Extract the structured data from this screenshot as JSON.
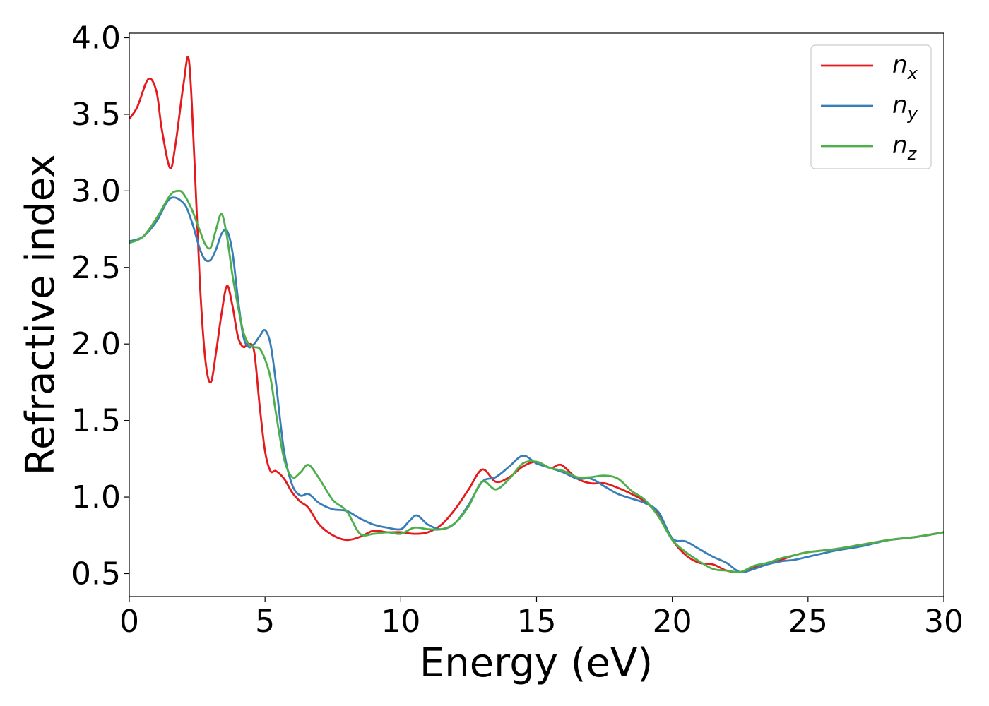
{
  "chart_data": {
    "type": "line",
    "title": "",
    "xlabel": "Energy (eV)",
    "ylabel": "Refractive index",
    "xlim": [
      0,
      30
    ],
    "ylim": [
      0.35,
      4.03
    ],
    "xticks": [
      0,
      5,
      10,
      15,
      20,
      25,
      30
    ],
    "xtick_labels": [
      "0",
      "5",
      "10",
      "15",
      "20",
      "25",
      "30"
    ],
    "yticks": [
      0.5,
      1.0,
      1.5,
      2.0,
      2.5,
      3.0,
      3.5,
      4.0
    ],
    "ytick_labels": [
      "0.5",
      "1.0",
      "1.5",
      "2.0",
      "2.5",
      "3.0",
      "3.5",
      "4.0"
    ],
    "grid": false,
    "legend": "top-right",
    "series": [
      {
        "name": "n",
        "subscript": "x",
        "color": "#e41a1c",
        "x": [
          0,
          0.3,
          0.7,
          1.0,
          1.2,
          1.5,
          1.7,
          2.0,
          2.2,
          2.4,
          2.6,
          2.8,
          3.0,
          3.2,
          3.4,
          3.6,
          3.8,
          4.0,
          4.2,
          4.4,
          4.6,
          4.8,
          5.0,
          5.2,
          5.4,
          5.7,
          6.0,
          6.3,
          6.6,
          7.0,
          7.5,
          8.0,
          8.5,
          9.0,
          9.5,
          10.0,
          10.5,
          11.0,
          11.5,
          12.0,
          12.5,
          13.0,
          13.5,
          14.0,
          14.5,
          15.0,
          15.5,
          15.8,
          16.0,
          16.5,
          17.0,
          17.5,
          18.0,
          18.5,
          19.0,
          19.5,
          20.0,
          20.5,
          21.0,
          21.5,
          22.0,
          22.5,
          23.0,
          23.5,
          24.0,
          24.5,
          25.0,
          26.0,
          27.0,
          28.0,
          29.0,
          30.0
        ],
        "y": [
          3.47,
          3.55,
          3.73,
          3.65,
          3.4,
          3.15,
          3.3,
          3.7,
          3.85,
          3.2,
          2.4,
          1.9,
          1.75,
          1.95,
          2.2,
          2.38,
          2.25,
          2.05,
          1.98,
          2.0,
          1.95,
          1.6,
          1.3,
          1.17,
          1.17,
          1.12,
          1.03,
          0.97,
          0.93,
          0.82,
          0.75,
          0.72,
          0.74,
          0.78,
          0.77,
          0.77,
          0.76,
          0.77,
          0.82,
          0.92,
          1.05,
          1.18,
          1.1,
          1.13,
          1.2,
          1.23,
          1.19,
          1.21,
          1.2,
          1.12,
          1.09,
          1.09,
          1.06,
          1.02,
          0.97,
          0.88,
          0.72,
          0.62,
          0.57,
          0.56,
          0.52,
          0.51,
          0.54,
          0.57,
          0.59,
          0.62,
          0.64,
          0.66,
          0.69,
          0.72,
          0.74,
          0.77
        ]
      },
      {
        "name": "n",
        "subscript": "y",
        "color": "#377eb8",
        "x": [
          0,
          0.5,
          1.0,
          1.5,
          2.0,
          2.3,
          2.6,
          2.8,
          3.0,
          3.2,
          3.4,
          3.6,
          3.8,
          4.0,
          4.2,
          4.4,
          4.6,
          4.8,
          5.0,
          5.2,
          5.4,
          5.7,
          6.0,
          6.3,
          6.6,
          7.0,
          7.5,
          8.0,
          8.5,
          9.0,
          9.5,
          10.0,
          10.3,
          10.6,
          11.0,
          11.5,
          12.0,
          12.5,
          13.0,
          13.5,
          14.0,
          14.5,
          15.0,
          15.5,
          16.0,
          16.5,
          17.0,
          17.5,
          18.0,
          18.5,
          19.0,
          19.5,
          20.0,
          20.5,
          21.0,
          21.5,
          22.0,
          22.5,
          23.0,
          23.5,
          24.0,
          24.5,
          25.0,
          26.0,
          27.0,
          28.0,
          29.0,
          30.0
        ],
        "y": [
          2.67,
          2.7,
          2.8,
          2.95,
          2.92,
          2.8,
          2.62,
          2.55,
          2.55,
          2.62,
          2.72,
          2.74,
          2.6,
          2.3,
          2.05,
          1.98,
          2.0,
          2.05,
          2.09,
          2.0,
          1.75,
          1.3,
          1.08,
          1.01,
          1.02,
          0.96,
          0.92,
          0.91,
          0.86,
          0.82,
          0.8,
          0.79,
          0.84,
          0.88,
          0.82,
          0.79,
          0.83,
          0.95,
          1.1,
          1.13,
          1.2,
          1.27,
          1.22,
          1.19,
          1.16,
          1.12,
          1.12,
          1.07,
          1.02,
          0.99,
          0.96,
          0.9,
          0.73,
          0.71,
          0.66,
          0.61,
          0.57,
          0.51,
          0.53,
          0.56,
          0.58,
          0.59,
          0.61,
          0.65,
          0.68,
          0.72,
          0.74,
          0.77
        ]
      },
      {
        "name": "n",
        "subscript": "z",
        "color": "#4daf4a",
        "x": [
          0,
          0.5,
          1.0,
          1.5,
          1.8,
          2.0,
          2.3,
          2.6,
          2.8,
          3.0,
          3.2,
          3.4,
          3.6,
          3.8,
          4.0,
          4.2,
          4.4,
          4.6,
          4.8,
          5.0,
          5.2,
          5.4,
          5.7,
          6.0,
          6.3,
          6.6,
          7.0,
          7.5,
          8.0,
          8.5,
          9.0,
          9.5,
          10.0,
          10.5,
          11.0,
          11.5,
          12.0,
          12.5,
          13.0,
          13.5,
          14.0,
          14.5,
          15.0,
          15.5,
          16.0,
          16.5,
          17.0,
          17.5,
          18.0,
          18.5,
          19.0,
          19.5,
          20.0,
          20.5,
          21.0,
          21.5,
          22.0,
          22.5,
          23.0,
          23.5,
          24.0,
          24.5,
          25.0,
          26.0,
          27.0,
          28.0,
          29.0,
          30.0
        ],
        "y": [
          2.66,
          2.7,
          2.82,
          2.97,
          3.0,
          2.98,
          2.88,
          2.74,
          2.65,
          2.63,
          2.75,
          2.85,
          2.7,
          2.45,
          2.25,
          2.08,
          2.0,
          1.98,
          1.97,
          1.9,
          1.78,
          1.55,
          1.25,
          1.13,
          1.16,
          1.21,
          1.12,
          0.98,
          0.91,
          0.76,
          0.76,
          0.77,
          0.76,
          0.8,
          0.79,
          0.79,
          0.83,
          0.94,
          1.1,
          1.05,
          1.12,
          1.22,
          1.23,
          1.19,
          1.17,
          1.13,
          1.13,
          1.14,
          1.12,
          1.04,
          0.98,
          0.87,
          0.72,
          0.64,
          0.58,
          0.53,
          0.52,
          0.51,
          0.55,
          0.57,
          0.6,
          0.62,
          0.64,
          0.66,
          0.69,
          0.72,
          0.74,
          0.77
        ]
      }
    ]
  }
}
